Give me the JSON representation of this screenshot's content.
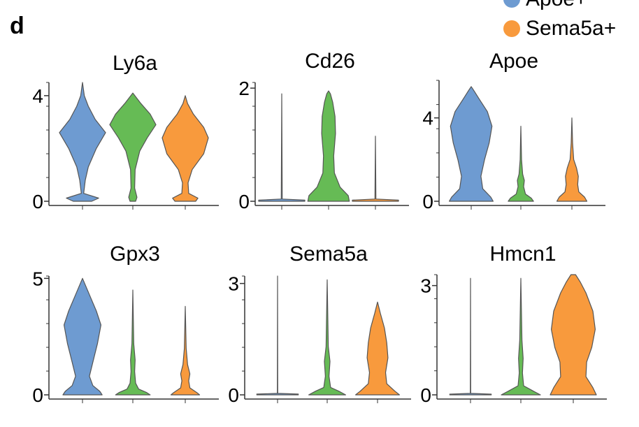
{
  "panel_label": "d",
  "legend": {
    "entries": [
      {
        "label": "Apoe+",
        "color": "#6e9bd1"
      },
      {
        "label": "Sema5a+",
        "color": "#f89a3d"
      }
    ]
  },
  "colors": {
    "group1": "#6e9bd1",
    "group2": "#66bb55",
    "group3": "#f89a3d"
  },
  "chart_data": [
    {
      "type": "violin",
      "title": "Ly6a",
      "ylim": [
        0,
        4.5
      ],
      "yticks": [
        0,
        4
      ],
      "groups": [
        {
          "color": "#6e9bd1",
          "max": 4.5,
          "profile": [
            [
              0,
              0.4
            ],
            [
              0.12,
              0.7
            ],
            [
              0.3,
              0.05
            ],
            [
              0.8,
              0.12
            ],
            [
              1.3,
              0.25
            ],
            [
              2.0,
              0.6
            ],
            [
              2.6,
              1.0
            ],
            [
              3.1,
              0.55
            ],
            [
              3.6,
              0.25
            ],
            [
              4.0,
              0.08
            ],
            [
              4.5,
              0
            ]
          ]
        },
        {
          "color": "#66bb55",
          "max": 4.1,
          "profile": [
            [
              0,
              0.12
            ],
            [
              0.15,
              0.18
            ],
            [
              0.5,
              0.08
            ],
            [
              1.2,
              0.1
            ],
            [
              1.9,
              0.3
            ],
            [
              2.4,
              0.62
            ],
            [
              2.9,
              1.0
            ],
            [
              3.3,
              0.75
            ],
            [
              3.7,
              0.35
            ],
            [
              4.1,
              0
            ]
          ]
        },
        {
          "color": "#f89a3d",
          "max": 4.0,
          "profile": [
            [
              0,
              0.45
            ],
            [
              0.12,
              0.55
            ],
            [
              0.3,
              0.15
            ],
            [
              0.7,
              0.12
            ],
            [
              1.2,
              0.3
            ],
            [
              1.8,
              0.8
            ],
            [
              2.4,
              1.0
            ],
            [
              2.8,
              0.8
            ],
            [
              3.3,
              0.35
            ],
            [
              3.7,
              0.1
            ],
            [
              4.0,
              0
            ]
          ]
        }
      ]
    },
    {
      "type": "violin",
      "title": "Cd26",
      "ylim": [
        0,
        2.1
      ],
      "yticks": [
        0,
        2
      ],
      "groups": [
        {
          "color": "#6e9bd1",
          "max": 1.9,
          "profile": [
            [
              0,
              1.0
            ],
            [
              0.02,
              1.0
            ],
            [
              0.04,
              0.02
            ],
            [
              1.9,
              0
            ]
          ]
        },
        {
          "color": "#66bb55",
          "max": 1.95,
          "profile": [
            [
              0,
              0.9
            ],
            [
              0.1,
              0.85
            ],
            [
              0.25,
              0.5
            ],
            [
              0.5,
              0.25
            ],
            [
              0.8,
              0.22
            ],
            [
              1.2,
              0.3
            ],
            [
              1.5,
              0.28
            ],
            [
              1.75,
              0.18
            ],
            [
              1.9,
              0.08
            ],
            [
              1.95,
              0
            ]
          ]
        },
        {
          "color": "#f89a3d",
          "max": 1.15,
          "profile": [
            [
              0,
              1.0
            ],
            [
              0.02,
              1.0
            ],
            [
              0.04,
              0.02
            ],
            [
              1.15,
              0
            ]
          ]
        }
      ]
    },
    {
      "type": "violin",
      "title": "Apoe",
      "ylim": [
        0,
        5.8
      ],
      "yticks": [
        0,
        4
      ],
      "groups": [
        {
          "color": "#6e9bd1",
          "max": 5.5,
          "profile": [
            [
              0,
              0.95
            ],
            [
              0.2,
              0.85
            ],
            [
              0.6,
              0.5
            ],
            [
              1.2,
              0.42
            ],
            [
              2.0,
              0.58
            ],
            [
              2.8,
              0.78
            ],
            [
              3.6,
              0.9
            ],
            [
              4.3,
              0.7
            ],
            [
              4.9,
              0.35
            ],
            [
              5.3,
              0.12
            ],
            [
              5.5,
              0
            ]
          ]
        },
        {
          "color": "#66bb55",
          "max": 3.6,
          "profile": [
            [
              0,
              0.55
            ],
            [
              0.15,
              0.45
            ],
            [
              0.35,
              0.2
            ],
            [
              0.7,
              0.12
            ],
            [
              1.0,
              0.15
            ],
            [
              1.3,
              0.08
            ],
            [
              2.0,
              0.03
            ],
            [
              3.6,
              0
            ]
          ]
        },
        {
          "color": "#f89a3d",
          "max": 4.0,
          "profile": [
            [
              0,
              0.65
            ],
            [
              0.2,
              0.55
            ],
            [
              0.45,
              0.3
            ],
            [
              0.8,
              0.25
            ],
            [
              1.2,
              0.28
            ],
            [
              1.6,
              0.2
            ],
            [
              2.0,
              0.08
            ],
            [
              2.8,
              0.03
            ],
            [
              4.0,
              0
            ]
          ]
        }
      ]
    },
    {
      "type": "violin",
      "title": "Gpx3",
      "ylim": [
        0,
        5.1
      ],
      "yticks": [
        0,
        5
      ],
      "groups": [
        {
          "color": "#6e9bd1",
          "max": 5.0,
          "profile": [
            [
              0,
              0.85
            ],
            [
              0.15,
              0.75
            ],
            [
              0.4,
              0.45
            ],
            [
              0.8,
              0.3
            ],
            [
              1.4,
              0.45
            ],
            [
              2.2,
              0.65
            ],
            [
              3.0,
              0.8
            ],
            [
              3.6,
              0.6
            ],
            [
              4.3,
              0.3
            ],
            [
              5.0,
              0
            ]
          ]
        },
        {
          "color": "#66bb55",
          "max": 4.5,
          "profile": [
            [
              0,
              0.75
            ],
            [
              0.1,
              0.6
            ],
            [
              0.25,
              0.25
            ],
            [
              0.5,
              0.12
            ],
            [
              1.0,
              0.08
            ],
            [
              1.5,
              0.1
            ],
            [
              2.2,
              0.04
            ],
            [
              4.5,
              0
            ]
          ]
        },
        {
          "color": "#f89a3d",
          "max": 3.8,
          "profile": [
            [
              0,
              0.62
            ],
            [
              0.1,
              0.5
            ],
            [
              0.3,
              0.2
            ],
            [
              0.6,
              0.15
            ],
            [
              0.9,
              0.2
            ],
            [
              1.3,
              0.1
            ],
            [
              2.0,
              0.04
            ],
            [
              3.8,
              0
            ]
          ]
        }
      ]
    },
    {
      "type": "violin",
      "title": "Sema5a",
      "ylim": [
        0,
        3.2
      ],
      "yticks": [
        0,
        3
      ],
      "groups": [
        {
          "color": "#6e9bd1",
          "max": 3.2,
          "profile": [
            [
              0,
              0.9
            ],
            [
              0.02,
              0.9
            ],
            [
              0.04,
              0.01
            ],
            [
              3.2,
              0
            ]
          ]
        },
        {
          "color": "#66bb55",
          "max": 3.1,
          "profile": [
            [
              0,
              0.8
            ],
            [
              0.1,
              0.5
            ],
            [
              0.2,
              0.15
            ],
            [
              0.5,
              0.08
            ],
            [
              0.9,
              0.12
            ],
            [
              1.3,
              0.05
            ],
            [
              3.1,
              0
            ]
          ]
        },
        {
          "color": "#f89a3d",
          "max": 2.5,
          "profile": [
            [
              0,
              0.95
            ],
            [
              0.1,
              0.75
            ],
            [
              0.3,
              0.4
            ],
            [
              0.6,
              0.35
            ],
            [
              1.0,
              0.45
            ],
            [
              1.4,
              0.4
            ],
            [
              1.8,
              0.3
            ],
            [
              2.2,
              0.12
            ],
            [
              2.5,
              0
            ]
          ]
        }
      ]
    },
    {
      "type": "violin",
      "title": "Hmcn1",
      "ylim": [
        0,
        3.3
      ],
      "yticks": [
        0,
        3
      ],
      "groups": [
        {
          "color": "#6e9bd1",
          "max": 3.2,
          "profile": [
            [
              0,
              0.9
            ],
            [
              0.02,
              0.9
            ],
            [
              0.04,
              0.01
            ],
            [
              3.2,
              0
            ]
          ]
        },
        {
          "color": "#66bb55",
          "max": 3.2,
          "profile": [
            [
              0,
              0.85
            ],
            [
              0.1,
              0.55
            ],
            [
              0.25,
              0.12
            ],
            [
              0.6,
              0.07
            ],
            [
              1.0,
              0.1
            ],
            [
              1.5,
              0.05
            ],
            [
              3.2,
              0
            ]
          ]
        },
        {
          "color": "#f89a3d",
          "max": 3.3,
          "profile": [
            [
              0,
              1.0
            ],
            [
              0.2,
              0.85
            ],
            [
              0.5,
              0.55
            ],
            [
              0.9,
              0.58
            ],
            [
              1.3,
              0.8
            ],
            [
              1.8,
              0.95
            ],
            [
              2.3,
              0.85
            ],
            [
              2.8,
              0.55
            ],
            [
              3.1,
              0.3
            ],
            [
              3.3,
              0.1
            ]
          ]
        }
      ]
    }
  ]
}
